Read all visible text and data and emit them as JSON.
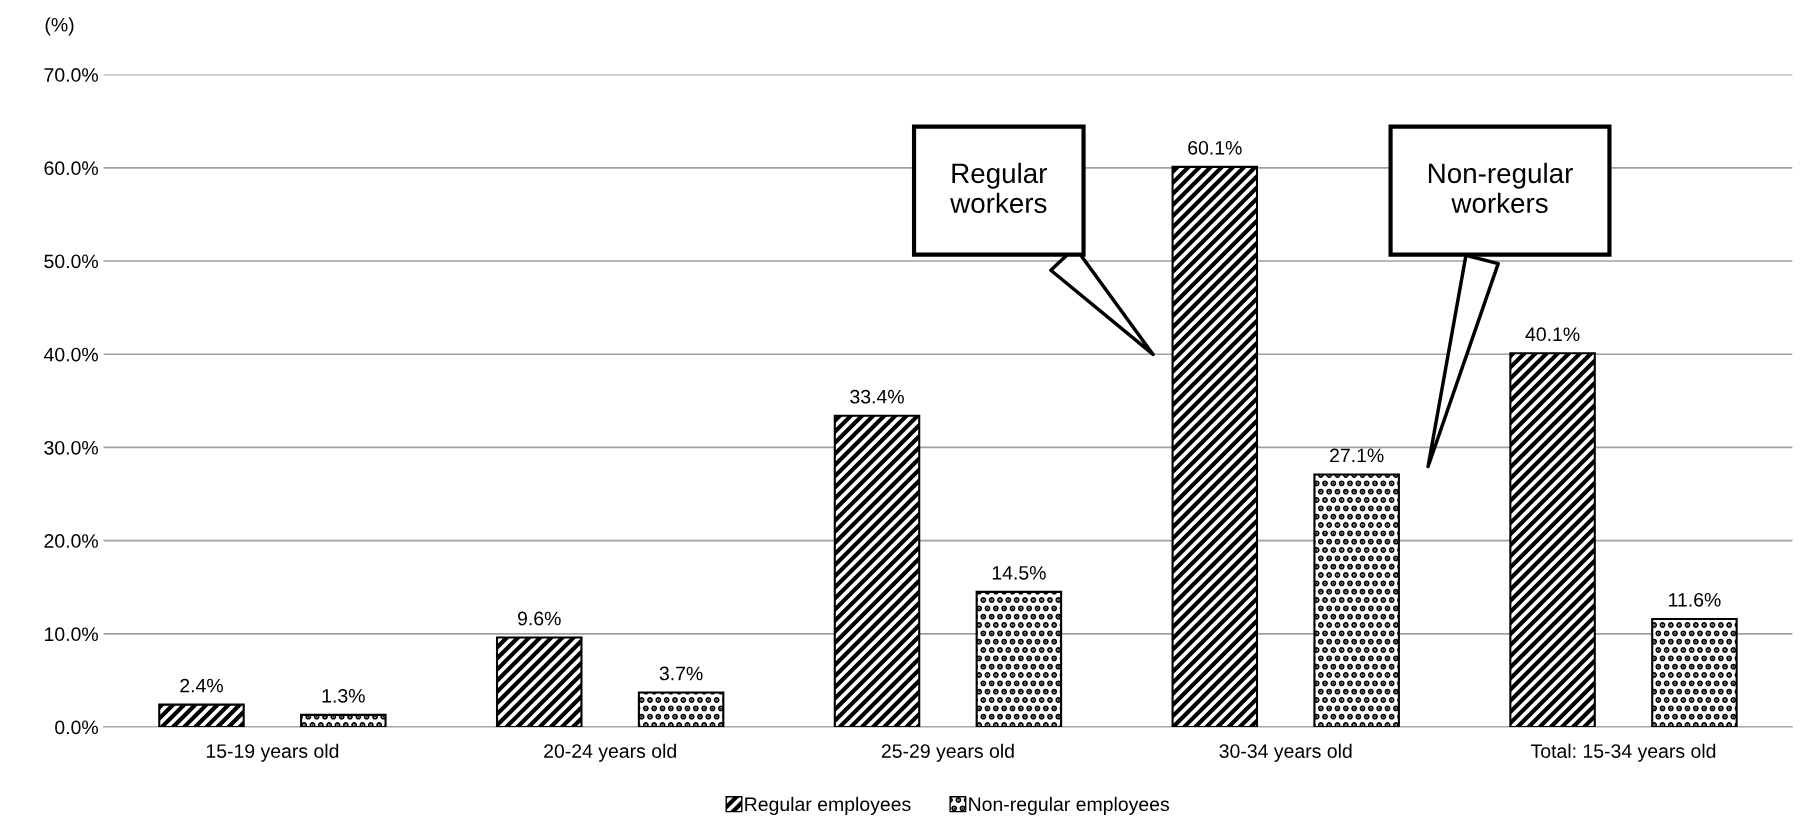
{
  "chart_data": {
    "type": "bar",
    "ylabel": "(%)",
    "categories": [
      "15-19 years old",
      "20-24 years old",
      "25-29 years old",
      "30-34 years old",
      "Total: 15-34 years old"
    ],
    "series": [
      {
        "name": "Regular employees",
        "color": "#000000",
        "values": [
          2.4,
          9.6,
          33.4,
          60.1,
          40.1
        ],
        "value_labels": [
          "2.4%",
          "9.6%",
          "33.4%",
          "60.1%",
          "40.1%"
        ]
      },
      {
        "name": "Non-regular employees",
        "color": "#000000",
        "values": [
          1.3,
          3.7,
          14.5,
          27.1,
          11.6
        ],
        "value_labels": [
          "1.3%",
          "3.7%",
          "14.5%",
          "27.1%",
          "11.6%"
        ]
      }
    ],
    "ylim": [
      0,
      70
    ],
    "yticks": [
      {
        "value": 0,
        "label": "0.0%"
      },
      {
        "value": 10,
        "label": "10.0%"
      },
      {
        "value": 20,
        "label": "20.0%"
      },
      {
        "value": 30,
        "label": "30.0%"
      },
      {
        "value": 40,
        "label": "40.0%"
      },
      {
        "value": 50,
        "label": "50.0%"
      },
      {
        "value": 60,
        "label": "60.0%"
      },
      {
        "value": 70,
        "label": "70.0%"
      }
    ],
    "grid": "y",
    "legend": "bottom",
    "annotations": [
      "Regular\nworkers",
      "Non-regular\nworkers"
    ]
  }
}
